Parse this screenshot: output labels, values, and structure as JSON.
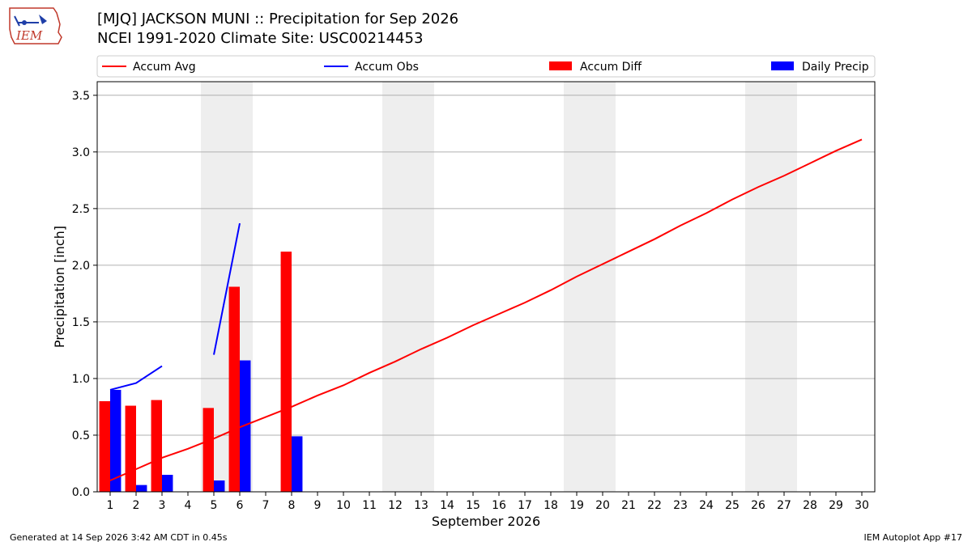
{
  "header": {
    "title_line1": "[MJQ] JACKSON MUNI :: Precipitation for Sep 2026",
    "title_line2": "NCEI 1991-2020 Climate Site: USC00214453",
    "logo_text": "IEM"
  },
  "footer": {
    "left": "Generated at 14 Sep 2026 3:42 AM CDT in 0.45s",
    "right": "IEM Autoplot App #17"
  },
  "colors": {
    "accum_avg": "#ff0000",
    "accum_obs": "#0000ff",
    "accum_diff": "#ff0000",
    "daily_precip": "#0000ff",
    "weekend_shade": "#eeeeee",
    "grid": "#b0b0b0"
  },
  "chart_data": {
    "type": "bar",
    "xlabel": "September 2026",
    "ylabel": "Precipitation [inch]",
    "xlim": [
      0.5,
      30.5
    ],
    "ylim": [
      0,
      3.62
    ],
    "yticks": [
      0.0,
      0.5,
      1.0,
      1.5,
      2.0,
      2.5,
      3.0,
      3.5
    ],
    "ytick_labels": [
      "0.0",
      "0.5",
      "1.0",
      "1.5",
      "2.0",
      "2.5",
      "3.0",
      "3.5"
    ],
    "x": [
      1,
      2,
      3,
      4,
      5,
      6,
      7,
      8,
      9,
      10,
      11,
      12,
      13,
      14,
      15,
      16,
      17,
      18,
      19,
      20,
      21,
      22,
      23,
      24,
      25,
      26,
      27,
      28,
      29,
      30
    ],
    "grid": "horizontal",
    "legend_position": "top",
    "legend": [
      "Accum Avg",
      "Accum Obs",
      "Accum Diff",
      "Daily Precip"
    ],
    "shaded_days": [
      [
        5,
        6
      ],
      [
        12,
        13
      ],
      [
        19,
        20
      ],
      [
        26,
        27
      ]
    ],
    "series": [
      {
        "name": "Accum Avg",
        "kind": "line",
        "x": [
          1,
          2,
          3,
          4,
          5,
          6,
          7,
          8,
          9,
          10,
          11,
          12,
          13,
          14,
          15,
          16,
          17,
          18,
          19,
          20,
          21,
          22,
          23,
          24,
          25,
          26,
          27,
          28,
          29,
          30
        ],
        "values": [
          0.1,
          0.2,
          0.3,
          0.38,
          0.47,
          0.57,
          0.66,
          0.75,
          0.85,
          0.94,
          1.05,
          1.15,
          1.26,
          1.36,
          1.47,
          1.57,
          1.67,
          1.78,
          1.9,
          2.01,
          2.12,
          2.23,
          2.35,
          2.46,
          2.58,
          2.69,
          2.79,
          2.9,
          3.01,
          3.11
        ]
      },
      {
        "name": "Accum Obs",
        "kind": "line",
        "segments": [
          {
            "x": [
              1,
              2,
              3
            ],
            "values": [
              0.9,
              0.96,
              1.11
            ]
          },
          {
            "x": [
              5,
              6
            ],
            "values": [
              1.21,
              2.37
            ]
          }
        ]
      },
      {
        "name": "Accum Diff",
        "kind": "bar",
        "x": [
          1,
          2,
          3,
          5,
          6,
          8
        ],
        "values": [
          0.8,
          0.76,
          0.81,
          0.74,
          1.81,
          2.12
        ]
      },
      {
        "name": "Daily Precip",
        "kind": "bar",
        "x": [
          1,
          2,
          3,
          5,
          6,
          8
        ],
        "values": [
          0.9,
          0.06,
          0.15,
          0.1,
          1.16,
          0.49
        ]
      }
    ]
  }
}
